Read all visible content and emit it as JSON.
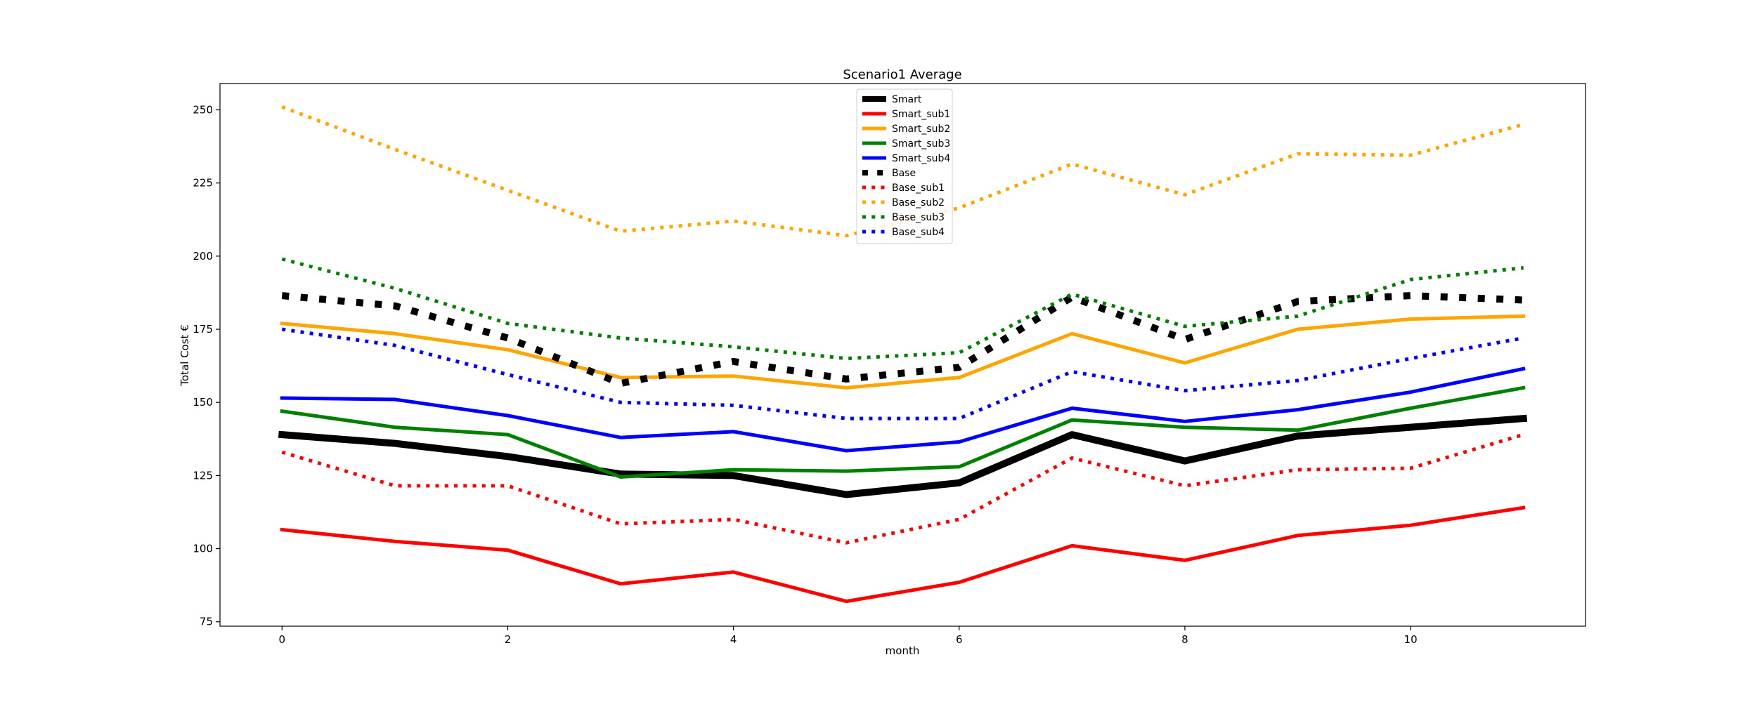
{
  "chart_data": {
    "type": "line",
    "title": "Scenario1 Average",
    "xlabel": "month",
    "ylabel": "Total Cost €",
    "x": [
      0,
      1,
      2,
      3,
      4,
      5,
      6,
      7,
      8,
      9,
      10,
      11
    ],
    "xlim": [
      -0.55,
      11.55
    ],
    "ylim": [
      73.5,
      259
    ],
    "xticks": [
      0,
      2,
      4,
      6,
      8,
      10
    ],
    "yticks": [
      75,
      100,
      125,
      150,
      175,
      200,
      225,
      250
    ],
    "grid": false,
    "legend_position": "upper center",
    "series": [
      {
        "name": "Smart",
        "style": "solid",
        "color": "#000000",
        "width": 10,
        "values": [
          139,
          136,
          131.5,
          125.5,
          125,
          118.5,
          122.5,
          139,
          130,
          138.5,
          141.5,
          144.5
        ]
      },
      {
        "name": "Smart_sub1",
        "style": "solid",
        "color": "#ff0000",
        "width": 5,
        "values": [
          106.5,
          102.5,
          99.5,
          88,
          92,
          82,
          88.5,
          101,
          96,
          104.5,
          108,
          114
        ]
      },
      {
        "name": "Smart_sub2",
        "style": "solid",
        "color": "#ffa500",
        "width": 5,
        "values": [
          177,
          173.5,
          168,
          158.5,
          159,
          155,
          158.5,
          173.5,
          163.5,
          175,
          178.5,
          179.5
        ]
      },
      {
        "name": "Smart_sub3",
        "style": "solid",
        "color": "#008000",
        "width": 5,
        "values": [
          147,
          141.5,
          139,
          124.5,
          127,
          126.5,
          128,
          144,
          141.5,
          140.5,
          148,
          155
        ]
      },
      {
        "name": "Smart_sub4",
        "style": "solid",
        "color": "#0000ff",
        "width": 5,
        "values": [
          151.5,
          151,
          145.5,
          138,
          140,
          133.5,
          136.5,
          148,
          143.5,
          147.5,
          153.5,
          161.5
        ]
      },
      {
        "name": "Base",
        "style": "dotted",
        "color": "#000000",
        "width": 10,
        "values": [
          186.5,
          183,
          172,
          156.5,
          164,
          158,
          162,
          186,
          171.5,
          184.5,
          186.5,
          185
        ]
      },
      {
        "name": "Base_sub1",
        "style": "dotted",
        "color": "#ff0000",
        "width": 5,
        "values": [
          133,
          121.5,
          121.5,
          108.5,
          110,
          102,
          110,
          131,
          121.5,
          127,
          127.5,
          139
        ]
      },
      {
        "name": "Base_sub2",
        "style": "dotted",
        "color": "#ffa500",
        "width": 5,
        "values": [
          251,
          236.5,
          222.5,
          208.5,
          212,
          207,
          216.5,
          231.5,
          221,
          235,
          234.5,
          245
        ]
      },
      {
        "name": "Base_sub3",
        "style": "dotted",
        "color": "#008000",
        "width": 5,
        "values": [
          199,
          189,
          177,
          172,
          169,
          165,
          167,
          187,
          176,
          179.5,
          192,
          196
        ]
      },
      {
        "name": "Base_sub4",
        "style": "dotted",
        "color": "#0000ff",
        "width": 5,
        "values": [
          175,
          169.5,
          159.5,
          150,
          149,
          144.5,
          144.5,
          160.5,
          154,
          157.5,
          165,
          172
        ]
      }
    ]
  }
}
